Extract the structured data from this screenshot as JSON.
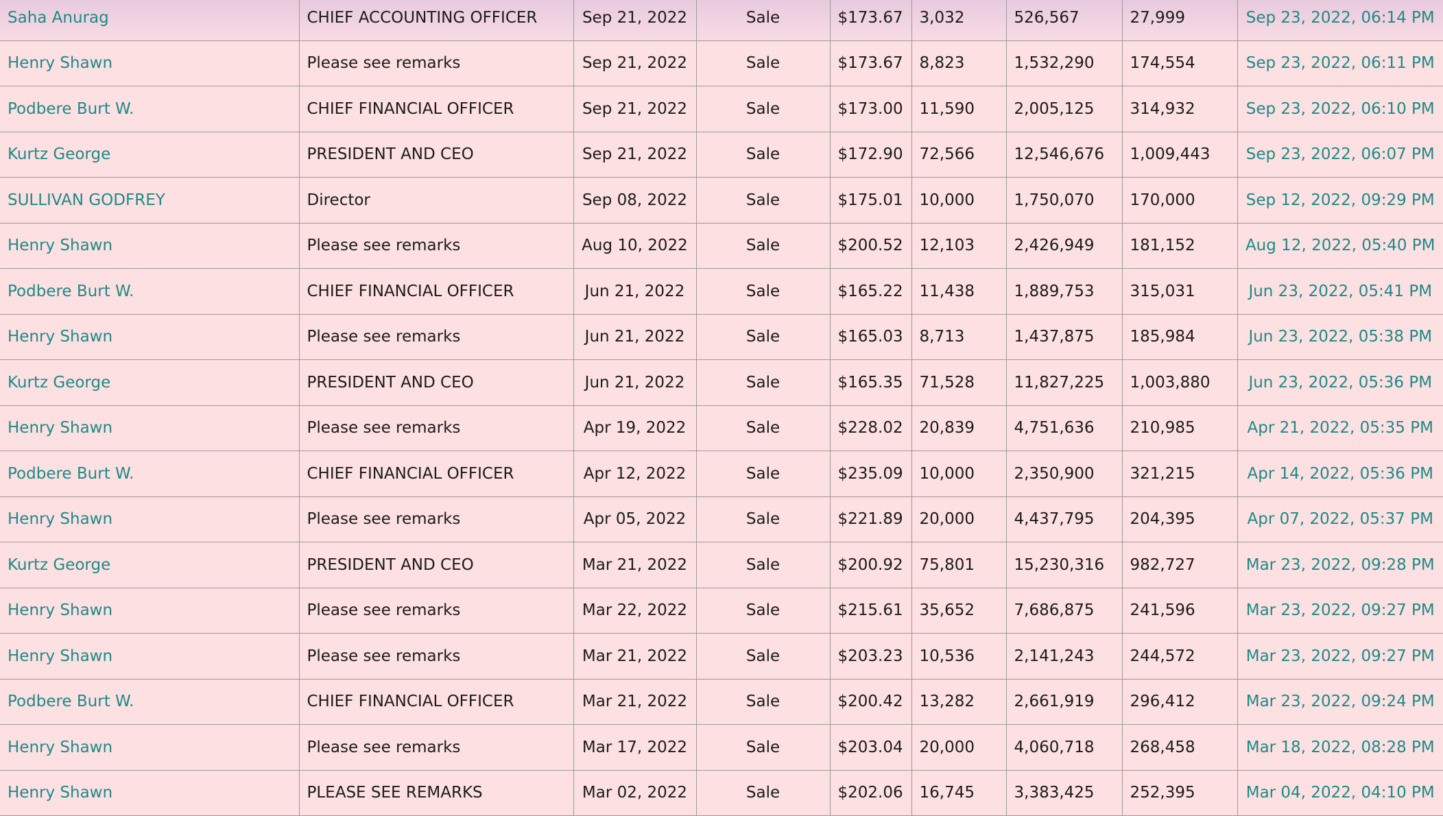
{
  "colors": {
    "link": "#1e8a86",
    "background": "#fde0e2",
    "border": "#9a9a9a"
  },
  "rows": [
    {
      "insider": "Saha Anurag",
      "title": "CHIEF ACCOUNTING OFFICER",
      "date": "Sep 21, 2022",
      "type": "Sale",
      "price": "$173.67",
      "shares": "3,032",
      "value": "526,567",
      "held": "27,999",
      "filed": "Sep 23, 2022, 06:14 PM"
    },
    {
      "insider": "Henry Shawn",
      "title": "Please see remarks",
      "date": "Sep 21, 2022",
      "type": "Sale",
      "price": "$173.67",
      "shares": "8,823",
      "value": "1,532,290",
      "held": "174,554",
      "filed": "Sep 23, 2022, 06:11 PM"
    },
    {
      "insider": "Podbere Burt W.",
      "title": "CHIEF FINANCIAL OFFICER",
      "date": "Sep 21, 2022",
      "type": "Sale",
      "price": "$173.00",
      "shares": "11,590",
      "value": "2,005,125",
      "held": "314,932",
      "filed": "Sep 23, 2022, 06:10 PM"
    },
    {
      "insider": "Kurtz George",
      "title": "PRESIDENT AND CEO",
      "date": "Sep 21, 2022",
      "type": "Sale",
      "price": "$172.90",
      "shares": "72,566",
      "value": "12,546,676",
      "held": "1,009,443",
      "filed": "Sep 23, 2022, 06:07 PM"
    },
    {
      "insider": "SULLIVAN GODFREY",
      "title": "Director",
      "date": "Sep 08, 2022",
      "type": "Sale",
      "price": "$175.01",
      "shares": "10,000",
      "value": "1,750,070",
      "held": "170,000",
      "filed": "Sep 12, 2022, 09:29 PM"
    },
    {
      "insider": "Henry Shawn",
      "title": "Please see remarks",
      "date": "Aug 10, 2022",
      "type": "Sale",
      "price": "$200.52",
      "shares": "12,103",
      "value": "2,426,949",
      "held": "181,152",
      "filed": "Aug 12, 2022, 05:40 PM"
    },
    {
      "insider": "Podbere Burt W.",
      "title": "CHIEF FINANCIAL OFFICER",
      "date": "Jun 21, 2022",
      "type": "Sale",
      "price": "$165.22",
      "shares": "11,438",
      "value": "1,889,753",
      "held": "315,031",
      "filed": "Jun 23, 2022, 05:41 PM"
    },
    {
      "insider": "Henry Shawn",
      "title": "Please see remarks",
      "date": "Jun 21, 2022",
      "type": "Sale",
      "price": "$165.03",
      "shares": "8,713",
      "value": "1,437,875",
      "held": "185,984",
      "filed": "Jun 23, 2022, 05:38 PM"
    },
    {
      "insider": "Kurtz George",
      "title": "PRESIDENT AND CEO",
      "date": "Jun 21, 2022",
      "type": "Sale",
      "price": "$165.35",
      "shares": "71,528",
      "value": "11,827,225",
      "held": "1,003,880",
      "filed": "Jun 23, 2022, 05:36 PM"
    },
    {
      "insider": "Henry Shawn",
      "title": "Please see remarks",
      "date": "Apr 19, 2022",
      "type": "Sale",
      "price": "$228.02",
      "shares": "20,839",
      "value": "4,751,636",
      "held": "210,985",
      "filed": "Apr 21, 2022, 05:35 PM"
    },
    {
      "insider": "Podbere Burt W.",
      "title": "CHIEF FINANCIAL OFFICER",
      "date": "Apr 12, 2022",
      "type": "Sale",
      "price": "$235.09",
      "shares": "10,000",
      "value": "2,350,900",
      "held": "321,215",
      "filed": "Apr 14, 2022, 05:36 PM"
    },
    {
      "insider": "Henry Shawn",
      "title": "Please see remarks",
      "date": "Apr 05, 2022",
      "type": "Sale",
      "price": "$221.89",
      "shares": "20,000",
      "value": "4,437,795",
      "held": "204,395",
      "filed": "Apr 07, 2022, 05:37 PM"
    },
    {
      "insider": "Kurtz George",
      "title": "PRESIDENT AND CEO",
      "date": "Mar 21, 2022",
      "type": "Sale",
      "price": "$200.92",
      "shares": "75,801",
      "value": "15,230,316",
      "held": "982,727",
      "filed": "Mar 23, 2022, 09:28 PM"
    },
    {
      "insider": "Henry Shawn",
      "title": "Please see remarks",
      "date": "Mar 22, 2022",
      "type": "Sale",
      "price": "$215.61",
      "shares": "35,652",
      "value": "7,686,875",
      "held": "241,596",
      "filed": "Mar 23, 2022, 09:27 PM"
    },
    {
      "insider": "Henry Shawn",
      "title": "Please see remarks",
      "date": "Mar 21, 2022",
      "type": "Sale",
      "price": "$203.23",
      "shares": "10,536",
      "value": "2,141,243",
      "held": "244,572",
      "filed": "Mar 23, 2022, 09:27 PM"
    },
    {
      "insider": "Podbere Burt W.",
      "title": "CHIEF FINANCIAL OFFICER",
      "date": "Mar 21, 2022",
      "type": "Sale",
      "price": "$200.42",
      "shares": "13,282",
      "value": "2,661,919",
      "held": "296,412",
      "filed": "Mar 23, 2022, 09:24 PM"
    },
    {
      "insider": "Henry Shawn",
      "title": "Please see remarks",
      "date": "Mar 17, 2022",
      "type": "Sale",
      "price": "$203.04",
      "shares": "20,000",
      "value": "4,060,718",
      "held": "268,458",
      "filed": "Mar 18, 2022, 08:28 PM"
    },
    {
      "insider": "Henry Shawn",
      "title": "PLEASE SEE REMARKS",
      "date": "Mar 02, 2022",
      "type": "Sale",
      "price": "$202.06",
      "shares": "16,745",
      "value": "3,383,425",
      "held": "252,395",
      "filed": "Mar 04, 2022, 04:10 PM"
    }
  ]
}
